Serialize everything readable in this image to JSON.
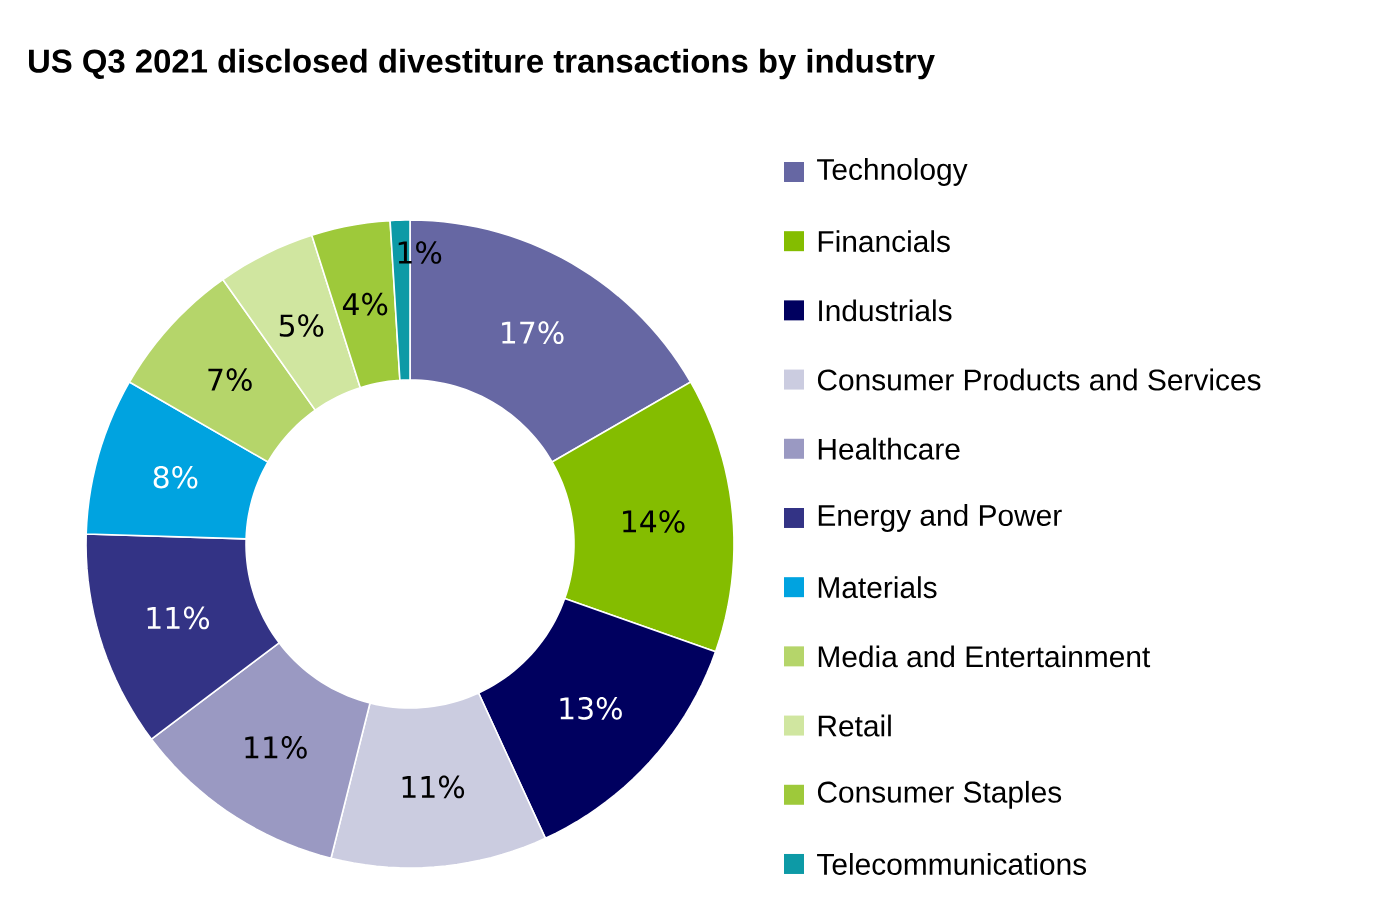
{
  "chart_data": {
    "type": "donut",
    "title": "US Q3 2021 disclosed divestiture transactions by industry",
    "categories": [
      "Technology",
      "Financials",
      "Industrials",
      "Consumer Products and Services",
      "Healthcare",
      "Energy and Power",
      "Materials",
      "Media and Entertainment",
      "Retail",
      "Consumer Staples",
      "Telecommunications"
    ],
    "values": [
      17,
      14,
      13,
      11,
      11,
      11,
      8,
      7,
      5,
      4,
      1
    ],
    "value_labels": [
      "17%",
      "14%",
      "13%",
      "11%",
      "11%",
      "11%",
      "8%",
      "7%",
      "5%",
      "4%",
      "1%"
    ],
    "colors": [
      "#6667a3",
      "#84bd00",
      "#00005f",
      "#cbcce0",
      "#9a99c2",
      "#333385",
      "#00a3e0",
      "#b5d56a",
      "#d0e6a0",
      "#9ec93a",
      "#0d9aa6"
    ],
    "legend": "right"
  }
}
